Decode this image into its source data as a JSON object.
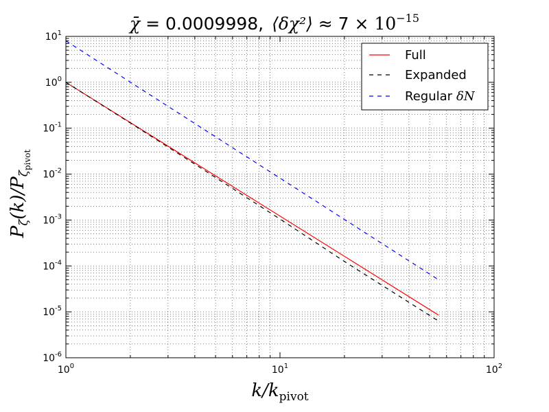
{
  "chart_data": {
    "type": "line",
    "title": {
      "chi_bar_symbol": "χ̄",
      "equals": " = 0.0009998,",
      "delta_chi_sq": "⟨δχ²⟩",
      "approx": " ≈ 7 × ",
      "power_base": "10",
      "power_exp": "−15"
    },
    "xlabel": {
      "main": "k/k",
      "sub": "pivot"
    },
    "ylabel": {
      "main": "P",
      "sub1": "ζ",
      "mid": "(k)/P",
      "sub2": "ζ",
      "sub3": "pivot"
    },
    "x_scale": "log",
    "y_scale": "log",
    "xlim": [
      1,
      100
    ],
    "ylim": [
      1e-06,
      10
    ],
    "x_ticks": [
      {
        "value": 1,
        "base": "10",
        "exp": "0"
      },
      {
        "value": 10,
        "base": "10",
        "exp": "1"
      },
      {
        "value": 100,
        "base": "10",
        "exp": "2"
      }
    ],
    "y_ticks": [
      {
        "value": 10,
        "base": "10",
        "exp": "1"
      },
      {
        "value": 1,
        "base": "10",
        "exp": "0"
      },
      {
        "value": 0.1,
        "base": "10",
        "exp": "-1"
      },
      {
        "value": 0.01,
        "base": "10",
        "exp": "-2"
      },
      {
        "value": 0.001,
        "base": "10",
        "exp": "-3"
      },
      {
        "value": 0.0001,
        "base": "10",
        "exp": "-4"
      },
      {
        "value": 1e-05,
        "base": "10",
        "exp": "-5"
      },
      {
        "value": 1e-06,
        "base": "10",
        "exp": "-6"
      }
    ],
    "grid": true,
    "legend_position": "top-right",
    "series": [
      {
        "name": "Full",
        "color": "#ff0000",
        "dash": "solid",
        "x": [
          1,
          55
        ],
        "y": [
          1.0,
          8.5e-06
        ]
      },
      {
        "name": "Expanded",
        "color": "#000000",
        "dash": "dashed",
        "x": [
          1,
          2,
          4,
          10,
          20,
          55
        ],
        "y": [
          1.0,
          0.13,
          0.0165,
          0.00105,
          0.000125,
          6.3e-06
        ]
      },
      {
        "name": "Regular",
        "name_math": "δN",
        "color": "#0000ff",
        "dash": "dashed",
        "x": [
          1,
          55
        ],
        "y": [
          8.0,
          5e-05
        ]
      }
    ]
  }
}
